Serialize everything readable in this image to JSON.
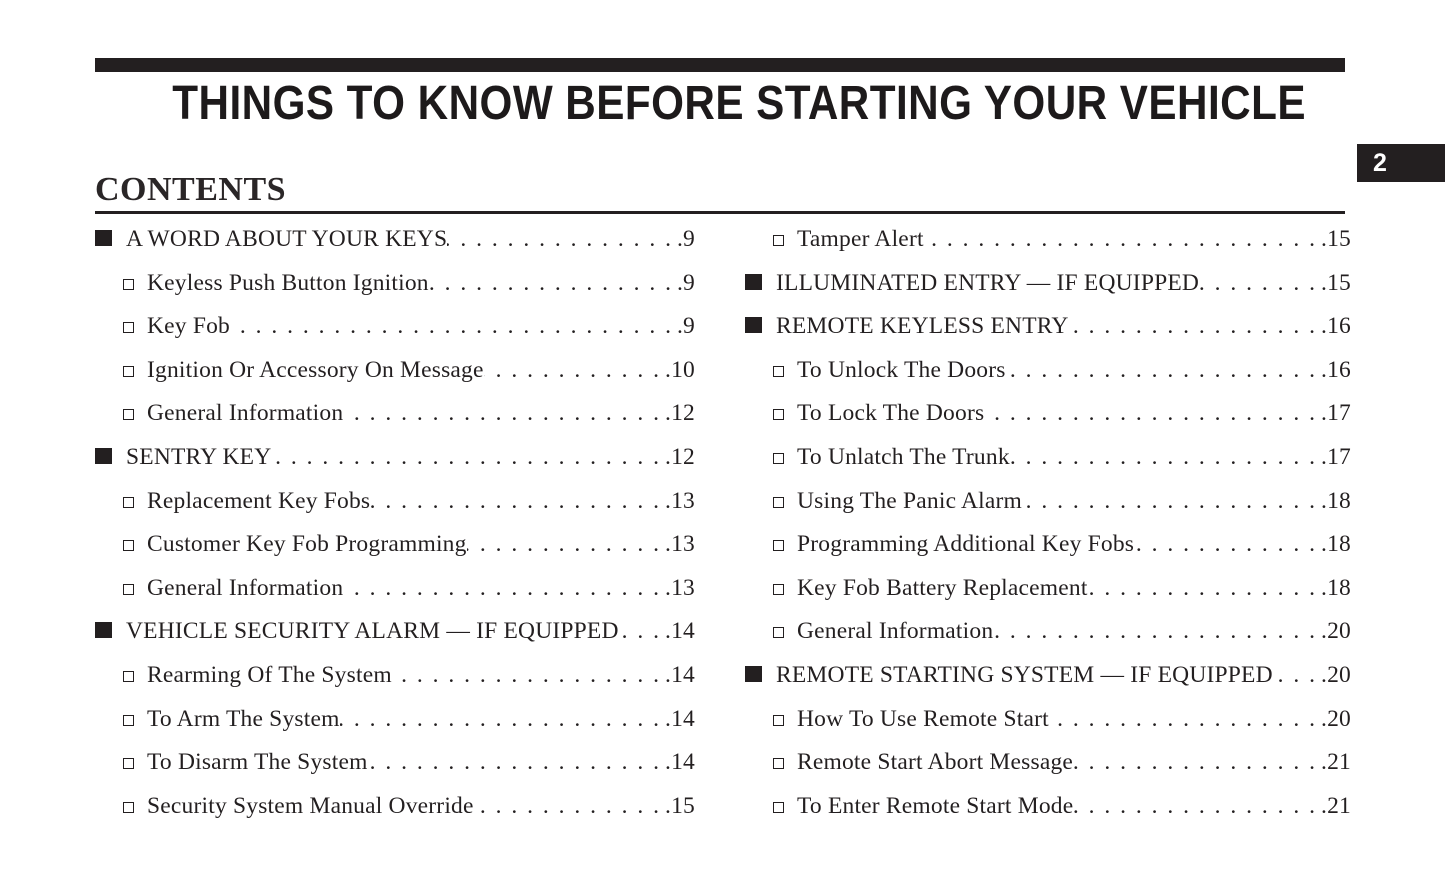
{
  "header": {
    "title": "THINGS TO KNOW BEFORE STARTING YOUR VEHICLE",
    "section_tab": "2"
  },
  "contents": {
    "heading": "CONTENTS"
  },
  "ui": {
    "ink_color": "#231f20",
    "paper_color": "#ffffff",
    "leader_dots": ". . . . . . . . . . . . . . . . . . . . . . . . . . . . . . . . . . . . . . . . . . . . . . . . . . . . . . . . . . . . . . . . . . . . . . . . . . . . . . . ."
  },
  "toc": {
    "left_column": [
      {
        "level": 1,
        "label": "A WORD ABOUT YOUR KEYS",
        "page": ".9"
      },
      {
        "level": 2,
        "label": "Keyless Push Button Ignition",
        "page": ".9"
      },
      {
        "level": 2,
        "label": "Key Fob",
        "page": ".9"
      },
      {
        "level": 2,
        "label": "Ignition Or Accessory On Message",
        "page": ".10"
      },
      {
        "level": 2,
        "label": "General Information",
        "page": ".12"
      },
      {
        "level": 1,
        "label": "SENTRY KEY",
        "page": ".12"
      },
      {
        "level": 2,
        "label": "Replacement Key Fobs",
        "page": ".13"
      },
      {
        "level": 2,
        "label": "Customer Key Fob Programming",
        "page": ".13"
      },
      {
        "level": 2,
        "label": "General Information",
        "page": ".13"
      },
      {
        "level": 1,
        "label": "VEHICLE SECURITY ALARM — IF EQUIPPED",
        "page": ".14"
      },
      {
        "level": 2,
        "label": "Rearming Of The System",
        "page": ".14"
      },
      {
        "level": 2,
        "label": "To Arm The System",
        "page": ".14"
      },
      {
        "level": 2,
        "label": "To Disarm The System",
        "page": ".14"
      },
      {
        "level": 2,
        "label": "Security System Manual Override",
        "page": ".15"
      }
    ],
    "right_column": [
      {
        "level": 2,
        "label": "Tamper Alert",
        "page": ".15"
      },
      {
        "level": 1,
        "label": "ILLUMINATED ENTRY — IF EQUIPPED",
        "page": ".15"
      },
      {
        "level": 1,
        "label": "REMOTE KEYLESS ENTRY",
        "page": ".16"
      },
      {
        "level": 2,
        "label": "To Unlock The Doors",
        "page": ".16"
      },
      {
        "level": 2,
        "label": "To Lock The Doors",
        "page": ".17"
      },
      {
        "level": 2,
        "label": "To Unlatch The Trunk",
        "page": ".17"
      },
      {
        "level": 2,
        "label": "Using The Panic Alarm",
        "page": ".18"
      },
      {
        "level": 2,
        "label": "Programming Additional Key Fobs",
        "page": ".18"
      },
      {
        "level": 2,
        "label": "Key Fob Battery Replacement",
        "page": ".18"
      },
      {
        "level": 2,
        "label": "General Information",
        "page": ".20"
      },
      {
        "level": 1,
        "label": "REMOTE STARTING SYSTEM — IF EQUIPPED",
        "page": ".20"
      },
      {
        "level": 2,
        "label": "How To Use Remote Start",
        "page": ".20"
      },
      {
        "level": 2,
        "label": "Remote Start Abort Message",
        "page": ".21"
      },
      {
        "level": 2,
        "label": "To Enter Remote Start Mode",
        "page": ".21"
      }
    ]
  }
}
